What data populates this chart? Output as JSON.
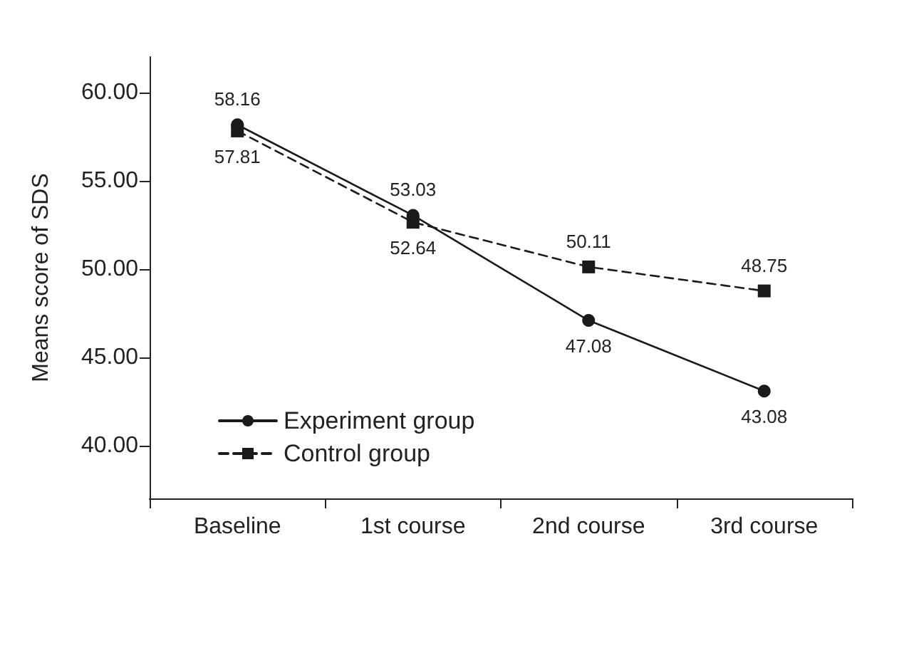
{
  "chart_data": {
    "type": "line",
    "ylabel": "Means score of SDS",
    "categories": [
      "Baseline",
      "1st course",
      "2nd course",
      "3rd course"
    ],
    "series": [
      {
        "name": "Experiment group",
        "color": "#1a1a1a",
        "values": [
          58.16,
          53.03,
          47.08,
          43.08
        ],
        "marker": "circle",
        "line_style": "solid"
      },
      {
        "name": "Control group",
        "color": "#1a1a1a",
        "values": [
          57.81,
          52.64,
          50.11,
          48.75
        ],
        "marker": "square",
        "line_style": "dashed"
      }
    ],
    "ylim": [
      37,
      62
    ],
    "yticks": [
      {
        "value": 40,
        "label": "40.00"
      },
      {
        "value": 45,
        "label": "45.00"
      },
      {
        "value": 50,
        "label": "50.00"
      },
      {
        "value": 55,
        "label": "55.00"
      },
      {
        "value": 60,
        "label": "60.00"
      }
    ],
    "data_labels": true,
    "legend": "bottom left",
    "grid": false
  }
}
